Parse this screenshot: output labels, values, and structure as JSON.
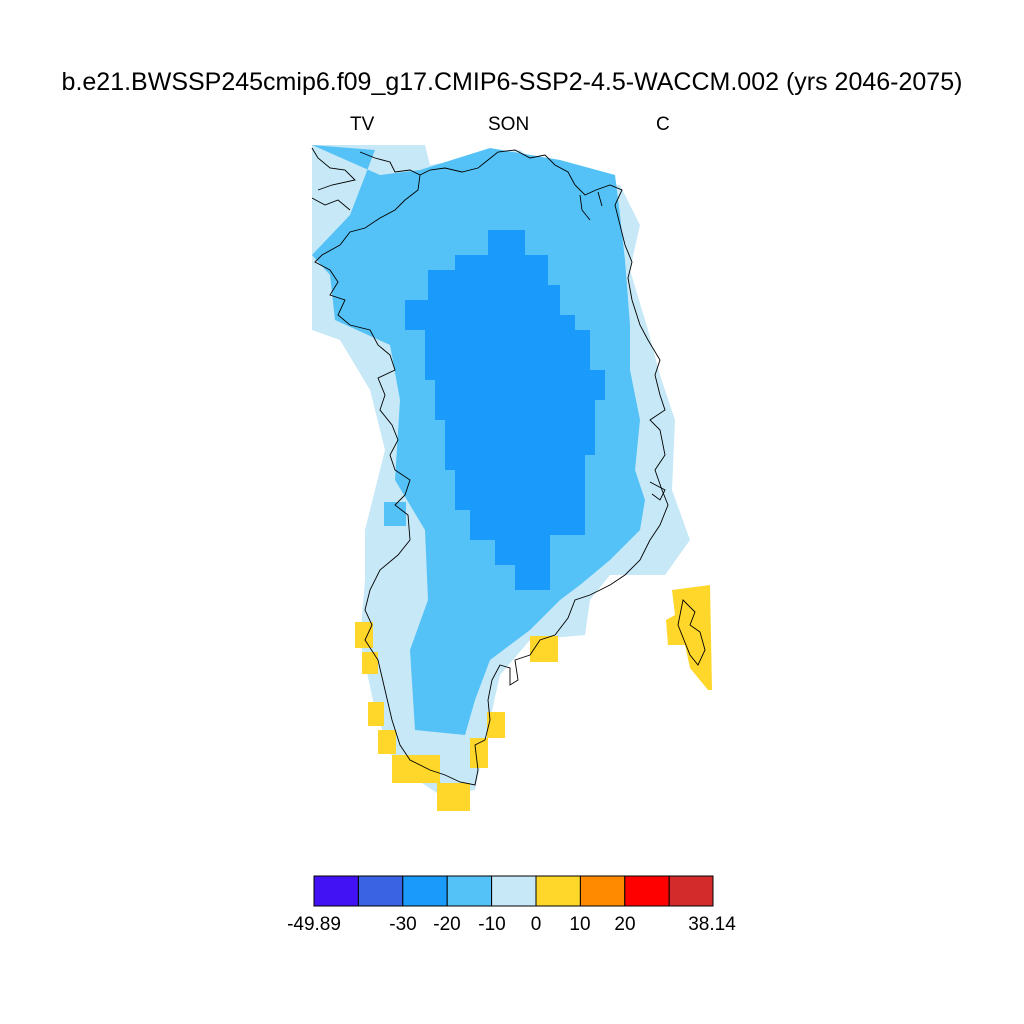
{
  "title": "b.e21.BWSSP245cmip6.f09_g17.CMIP6-SSP2-4.5-WACCM.002 (yrs 2046-2075)",
  "subtitle": {
    "left": "TV",
    "center": "SON",
    "right": "C"
  },
  "colors": {
    "bin_0": "#4212f5",
    "bin_1": "#3a63e3",
    "bin_2": "#1a9bfc",
    "bin_3": "#54c2f6",
    "bin_4": "#c7e8f7",
    "bin_5": "#ffd62a",
    "bin_6": "#ff8a00",
    "bin_7": "#ff0000",
    "bin_8": "#d32b2b",
    "coast": "#000000"
  },
  "colorbar": {
    "labels": [
      "-49.89",
      "-30",
      "-20",
      "-10",
      "0",
      "10",
      "20",
      "38.14"
    ],
    "levels": [
      -49.89,
      -30,
      -20,
      -10,
      0,
      10,
      20,
      38.14
    ]
  }
}
